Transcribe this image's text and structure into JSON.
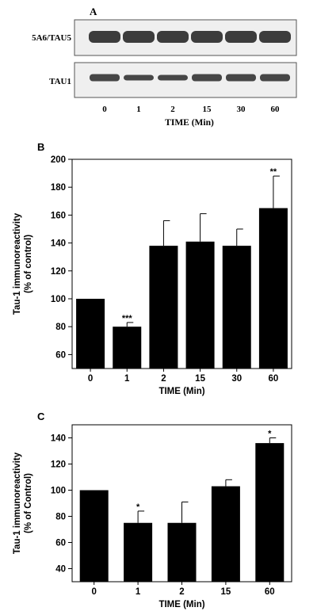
{
  "panel_a": {
    "label": "A",
    "blot_labels": [
      "5A6/TAU5",
      "TAU1"
    ],
    "lanes": [
      "0",
      "1",
      "2",
      "15",
      "30",
      "60"
    ],
    "xlabel": "TIME (Min)",
    "band_color": "#1c1c1c",
    "blot_background": "#efefef"
  },
  "chart_data": [
    {
      "id": "B",
      "type": "bar",
      "panel_label": "B",
      "categories": [
        "0",
        "1",
        "2",
        "15",
        "30",
        "60"
      ],
      "values": [
        100,
        80,
        138,
        141,
        138,
        165
      ],
      "errors": [
        0,
        3,
        18,
        20,
        12,
        23
      ],
      "annotations": [
        "",
        "***",
        "",
        "",
        "",
        "**"
      ],
      "xlabel": "TIME (Min)",
      "ylabel_lines": [
        "Tau-1 immunoreactivity",
        "(% of control)"
      ],
      "ylim": [
        50,
        200
      ],
      "yticks": [
        60,
        80,
        100,
        120,
        140,
        160,
        180,
        200
      ],
      "bar_color": "#000000"
    },
    {
      "id": "C",
      "type": "bar",
      "panel_label": "C",
      "categories": [
        "0",
        "1",
        "2",
        "15",
        "60"
      ],
      "values": [
        100,
        75,
        75,
        103,
        136
      ],
      "errors": [
        0,
        9,
        16,
        5,
        4
      ],
      "annotations": [
        "",
        "*",
        "",
        "",
        "*"
      ],
      "xlabel": "TIME (Min)",
      "ylabel_lines": [
        "Tau-1 immunoreactivity",
        "(% of Control)"
      ],
      "ylim": [
        30,
        150
      ],
      "yticks": [
        40,
        60,
        80,
        100,
        120,
        140
      ],
      "bar_color": "#000000"
    }
  ]
}
